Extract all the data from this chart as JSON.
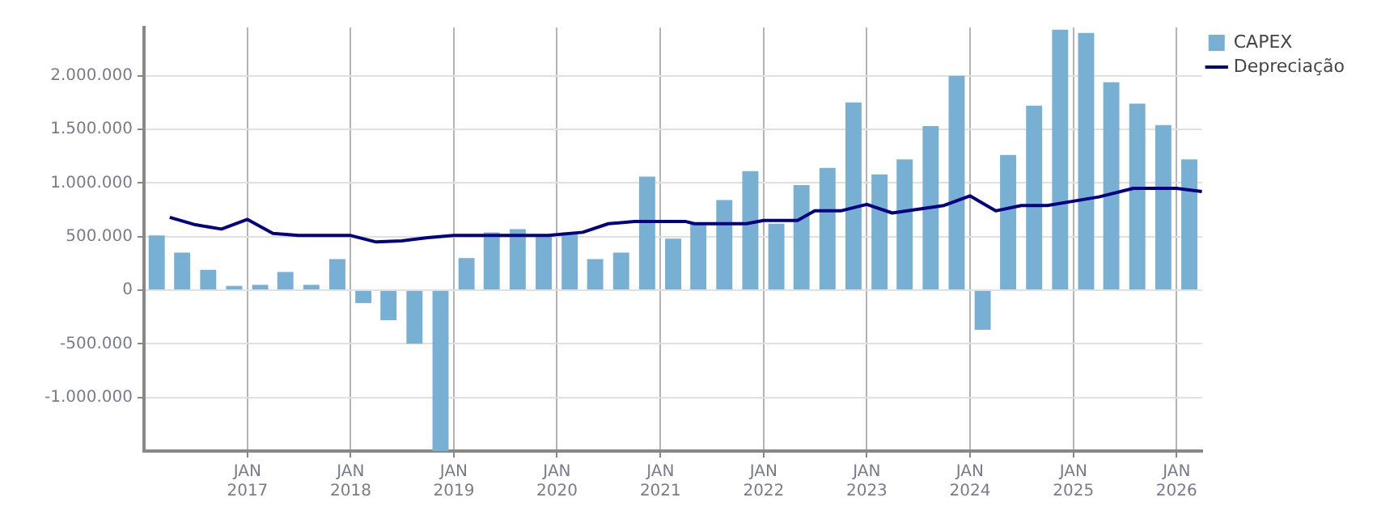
{
  "chart_data": {
    "type": "bar",
    "x": [
      "2016-02-15",
      "2016-05-15",
      "2016-08-15",
      "2016-11-15",
      "2017-02-15",
      "2017-05-15",
      "2017-08-15",
      "2017-11-15",
      "2018-02-15",
      "2018-05-15",
      "2018-08-15",
      "2018-11-15",
      "2019-02-15",
      "2019-05-15",
      "2019-08-15",
      "2019-11-15",
      "2020-02-15",
      "2020-05-15",
      "2020-08-15",
      "2020-11-15",
      "2021-02-15",
      "2021-05-15",
      "2021-08-15",
      "2021-11-15",
      "2022-02-15",
      "2022-05-15",
      "2022-08-15",
      "2022-11-15",
      "2023-02-15",
      "2023-05-15",
      "2023-08-15",
      "2023-11-15",
      "2024-02-15",
      "2024-05-15",
      "2024-08-15",
      "2024-11-15",
      "2025-02-15",
      "2025-05-15",
      "2025-08-15",
      "2025-11-15",
      "2026-02-15"
    ],
    "series": [
      {
        "name": "CAPEX",
        "color": "#78b0d3",
        "values": [
          510000,
          350000,
          190000,
          40000,
          50000,
          170000,
          50000,
          290000,
          -120000,
          -280000,
          -500000,
          -1500000,
          300000,
          540000,
          570000,
          520000,
          540000,
          290000,
          350000,
          1060000,
          480000,
          620000,
          840000,
          1110000,
          620000,
          980000,
          1140000,
          1750000,
          1080000,
          1220000,
          1530000,
          2000000,
          -370000,
          1260000,
          1720000,
          2430000,
          2400000,
          1940000,
          1740000,
          1540000,
          1220000
        ]
      },
      {
        "name": "Depreciação",
        "type": "line",
        "color": "#000080",
        "x": [
          "2016-04-01",
          "2016-07-01",
          "2016-10-01",
          "2017-01-01",
          "2017-04-01",
          "2017-07-01",
          "2018-01-01",
          "2018-04-01",
          "2018-07-01",
          "2018-10-01",
          "2019-01-01",
          "2019-12-01",
          "2020-04-01",
          "2020-07-01",
          "2020-10-01",
          "2021-04-01",
          "2021-05-01",
          "2021-11-01",
          "2022-01-01",
          "2022-05-01",
          "2022-07-01",
          "2022-10-01",
          "2023-01-01",
          "2023-04-01",
          "2023-10-01",
          "2024-01-01",
          "2024-04-01",
          "2024-07-01",
          "2024-10-01",
          "2025-04-01",
          "2025-08-01",
          "2026-01-01",
          "2026-04-01"
        ],
        "values": [
          680000,
          610000,
          570000,
          660000,
          530000,
          510000,
          510000,
          450000,
          460000,
          490000,
          510000,
          510000,
          540000,
          620000,
          640000,
          640000,
          620000,
          620000,
          650000,
          650000,
          740000,
          740000,
          800000,
          720000,
          790000,
          880000,
          740000,
          790000,
          790000,
          870000,
          950000,
          950000,
          920000
        ]
      }
    ],
    "xlim": [
      "2016-01-01",
      "2026-04-01"
    ],
    "xticks": [
      {
        "value": "2017-01-01",
        "label": "JAN 2017"
      },
      {
        "value": "2018-01-01",
        "label": "JAN 2018"
      },
      {
        "value": "2019-01-01",
        "label": "JAN 2019"
      },
      {
        "value": "2020-01-01",
        "label": "JAN 2020"
      },
      {
        "value": "2021-01-01",
        "label": "JAN 2021"
      },
      {
        "value": "2022-01-01",
        "label": "JAN 2022"
      },
      {
        "value": "2023-01-01",
        "label": "JAN 2023"
      },
      {
        "value": "2024-01-01",
        "label": "JAN 2024"
      },
      {
        "value": "2025-01-01",
        "label": "JAN 2025"
      },
      {
        "value": "2026-01-01",
        "label": "JAN 2026"
      }
    ],
    "ylim": [
      -1500000,
      2450000
    ],
    "yticks": [
      {
        "value": -1000000,
        "label": "-1.000.000"
      },
      {
        "value": -500000,
        "label": "-500.000"
      },
      {
        "value": 0,
        "label": "0"
      },
      {
        "value": 500000,
        "label": "500.000"
      },
      {
        "value": 1000000,
        "label": "1.000.000"
      },
      {
        "value": 1500000,
        "label": "1.500.000"
      },
      {
        "value": 2000000,
        "label": "2.000.000"
      }
    ],
    "grid": true,
    "legend": "top right",
    "marker": "none",
    "line_style": "solid"
  }
}
